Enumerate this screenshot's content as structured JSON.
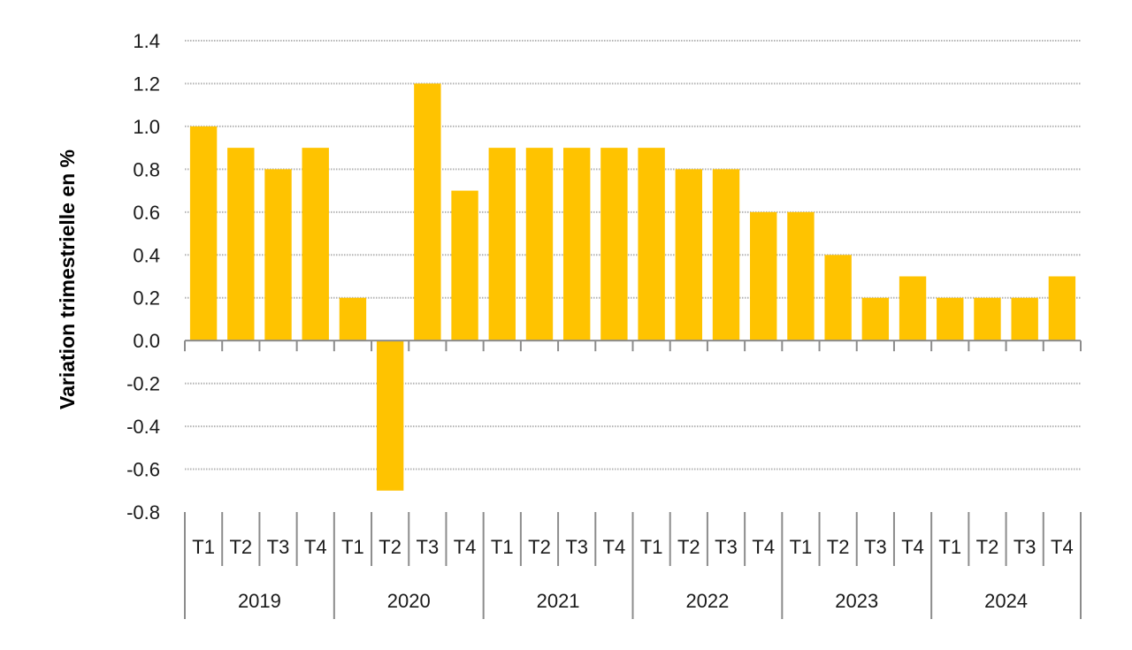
{
  "chart_data": {
    "type": "bar",
    "ylabel": "Variation trimestrielle en %",
    "xlabel": "",
    "ylim": [
      -0.8,
      1.4
    ],
    "yticks": [
      "1.4",
      "1.2",
      "1.0",
      "0.8",
      "0.6",
      "0.4",
      "0.2",
      "0.0",
      "-0.2",
      "-0.4",
      "-0.6",
      "-0.8"
    ],
    "grid": true,
    "legend": "none",
    "bar_color": "#FFC300",
    "groups": [
      {
        "label": "2019",
        "quarters": [
          "T1",
          "T2",
          "T3",
          "T4"
        ]
      },
      {
        "label": "2020",
        "quarters": [
          "T1",
          "T2",
          "T3",
          "T4"
        ]
      },
      {
        "label": "2021",
        "quarters": [
          "T1",
          "T2",
          "T3",
          "T4"
        ]
      },
      {
        "label": "2022",
        "quarters": [
          "T1",
          "T2",
          "T3",
          "T4"
        ]
      },
      {
        "label": "2023",
        "quarters": [
          "T1",
          "T2",
          "T3",
          "T4"
        ]
      },
      {
        "label": "2024",
        "quarters": [
          "T1",
          "T2",
          "T3",
          "T4"
        ]
      }
    ],
    "values": [
      1.0,
      0.9,
      0.8,
      0.9,
      0.2,
      -0.7,
      1.2,
      0.7,
      0.9,
      0.9,
      0.9,
      0.9,
      0.9,
      0.8,
      0.8,
      0.6,
      0.6,
      0.4,
      0.2,
      0.3,
      0.2,
      0.2,
      0.2,
      0.3
    ]
  }
}
